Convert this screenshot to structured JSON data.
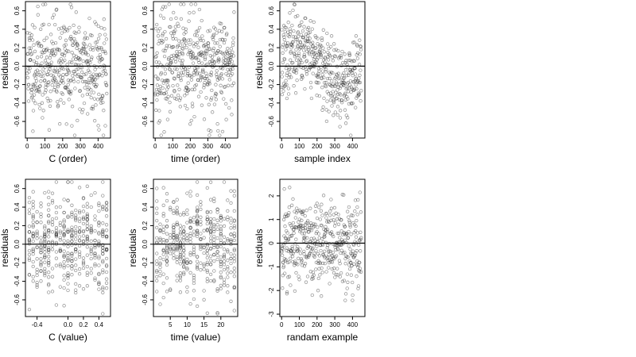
{
  "chart_data": [
    {
      "type": "scatter",
      "xlabel": "C (order)",
      "ylabel": "residuals",
      "xlim": [
        -10,
        470
      ],
      "ylim": [
        -0.78,
        0.7
      ],
      "xticks": [
        0,
        100,
        200,
        300,
        400
      ],
      "yticks": [
        -0.6,
        -0.4,
        -0.2,
        0.0,
        0.2,
        0.4,
        0.6
      ],
      "ytick_labels": [
        "-0.6",
        "-0.4",
        "-0.2",
        "0.0",
        "0.2",
        "0.4",
        "0.6"
      ],
      "reference_line": 0,
      "x_range": [
        0,
        450
      ],
      "n_points": 450,
      "y_spread": 0.28,
      "pattern": "order",
      "seed": 11
    },
    {
      "type": "scatter",
      "xlabel": "time (order)",
      "ylabel": "residuals",
      "xlim": [
        -10,
        470
      ],
      "ylim": [
        -0.78,
        0.7
      ],
      "xticks": [
        0,
        100,
        200,
        300,
        400
      ],
      "yticks": [
        -0.6,
        -0.4,
        -0.2,
        0.0,
        0.2,
        0.4,
        0.6
      ],
      "ytick_labels": [
        "-0.6",
        "-0.4",
        "-0.2",
        "0.0",
        "0.2",
        "0.4",
        "0.6"
      ],
      "reference_line": 0,
      "x_range": [
        0,
        450
      ],
      "n_points": 450,
      "y_spread": 0.28,
      "pattern": "order",
      "seed": 23
    },
    {
      "type": "scatter",
      "xlabel": "sample index",
      "ylabel": "residuals",
      "xlim": [
        -10,
        470
      ],
      "ylim": [
        -0.78,
        0.7
      ],
      "xticks": [
        0,
        100,
        200,
        300,
        400
      ],
      "yticks": [
        -0.6,
        -0.4,
        -0.2,
        0.0,
        0.2,
        0.4,
        0.6
      ],
      "ytick_labels": [
        "-0.6",
        "-0.4",
        "-0.2",
        "0.0",
        "0.2",
        "0.4",
        "0.6"
      ],
      "reference_line": 0,
      "x_range": [
        0,
        450
      ],
      "n_points": 450,
      "y_spread": 0.26,
      "pattern": "wave",
      "seed": 37
    },
    {
      "type": "scatter",
      "xlabel": "C (value)",
      "ylabel": "residuals",
      "xlim": [
        -0.55,
        0.55
      ],
      "ylim": [
        -0.78,
        0.7
      ],
      "xticks": [
        -0.4,
        0.0,
        0.2,
        0.4
      ],
      "xtick_labels": [
        "-0.4",
        "0.0",
        "0.2",
        "0.4"
      ],
      "yticks": [
        -0.6,
        -0.4,
        -0.2,
        0.0,
        0.2,
        0.4,
        0.6
      ],
      "ytick_labels": [
        "-0.6",
        "-0.4",
        "-0.2",
        "0.0",
        "0.2",
        "0.4",
        "0.6"
      ],
      "reference_line": 0,
      "x_levels": [
        -0.5,
        -0.45,
        -0.4,
        -0.35,
        -0.3,
        -0.25,
        -0.2,
        -0.15,
        -0.1,
        -0.05,
        0.0,
        0.05,
        0.1,
        0.15,
        0.2,
        0.25,
        0.3,
        0.35,
        0.4,
        0.45,
        0.5
      ],
      "n_points": 450,
      "y_spread": 0.28,
      "pattern": "levels",
      "seed": 41
    },
    {
      "type": "scatter",
      "xlabel": "time (value)",
      "ylabel": "residuals",
      "xlim": [
        0,
        25
      ],
      "ylim": [
        -0.78,
        0.7
      ],
      "xticks": [
        5,
        10,
        15,
        20
      ],
      "xtick_labels": [
        "5",
        "10",
        "15",
        "20"
      ],
      "yticks": [
        -0.6,
        -0.4,
        -0.2,
        0.0,
        0.2,
        0.4,
        0.6
      ],
      "ytick_labels": [
        "-0.6",
        "-0.4",
        "-0.2",
        "0.0",
        "0.2",
        "0.4",
        "0.6"
      ],
      "reference_line": 0,
      "x_levels": [
        1,
        2,
        3,
        4,
        5,
        6,
        7,
        8,
        9,
        10,
        11,
        12,
        13,
        14,
        15,
        16,
        17,
        18,
        19,
        20,
        21,
        22,
        23,
        24
      ],
      "n_points": 450,
      "y_spread": 0.28,
      "pattern": "levels",
      "seed": 53
    },
    {
      "type": "scatter",
      "xlabel": "randam example",
      "ylabel": "residuals",
      "xlim": [
        -10,
        470
      ],
      "ylim": [
        -3.1,
        2.7
      ],
      "xticks": [
        0,
        100,
        200,
        300,
        400
      ],
      "yticks": [
        -3,
        -2,
        -1,
        0,
        1,
        2
      ],
      "ytick_labels": [
        "-3",
        "-2",
        "-1",
        "0",
        "1",
        "2"
      ],
      "reference_line": 0,
      "x_range": [
        0,
        450
      ],
      "n_points": 450,
      "y_spread": 1.0,
      "pattern": "order",
      "seed": 71
    }
  ]
}
